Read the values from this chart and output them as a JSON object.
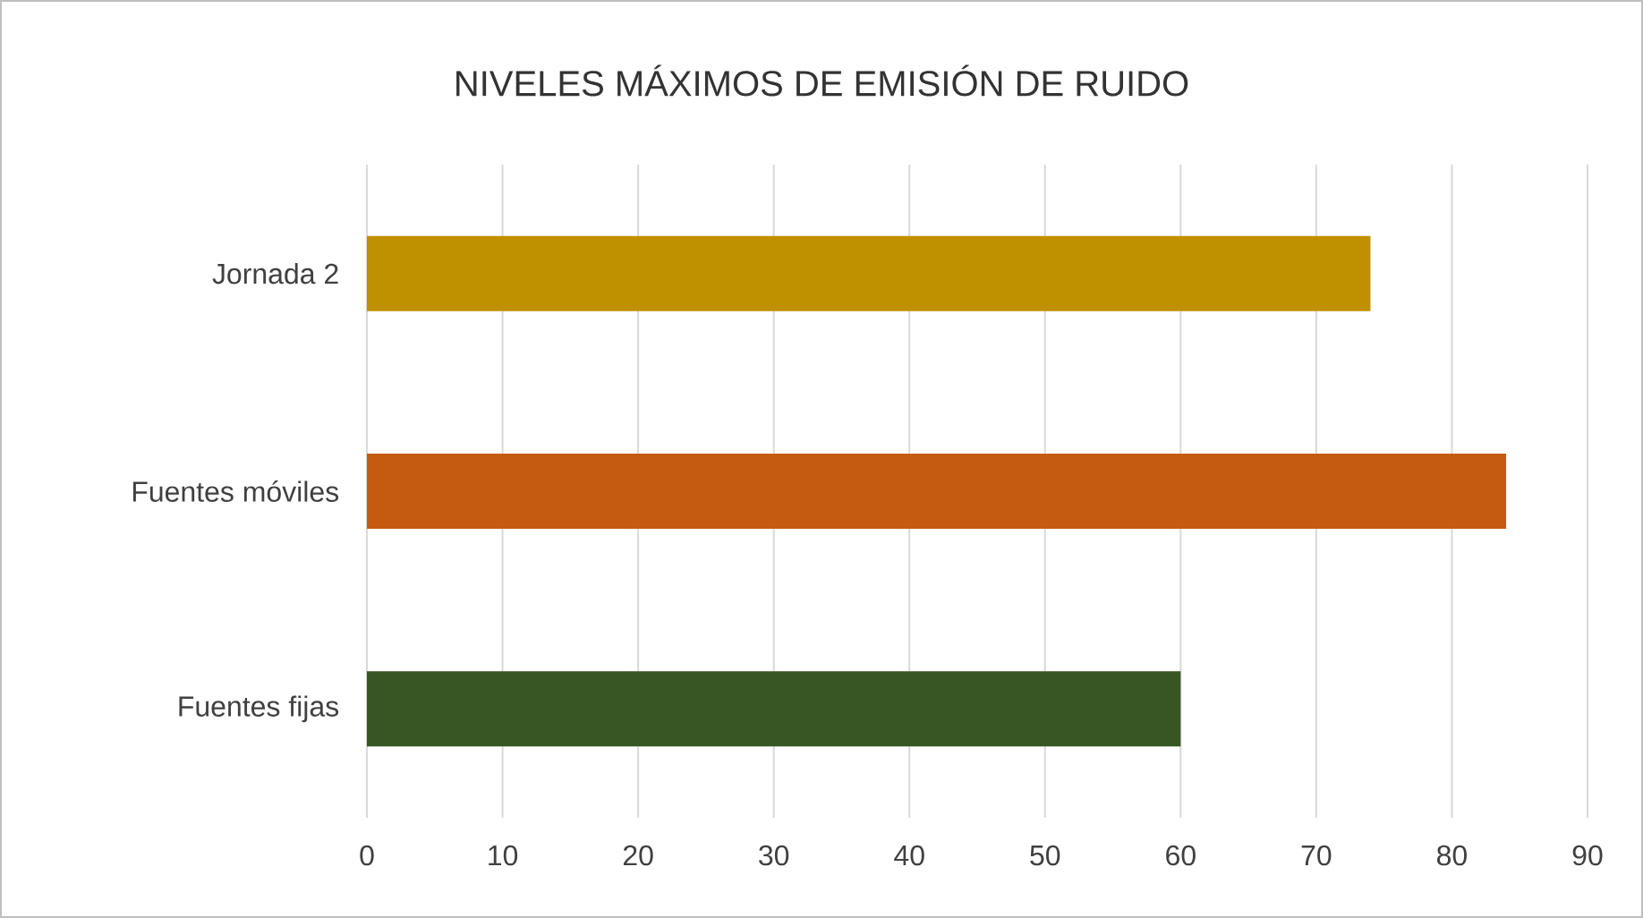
{
  "chart_data": {
    "type": "bar",
    "orientation": "horizontal",
    "title": "NIVELES MÁXIMOS DE EMISIÓN DE RUIDO",
    "categories": [
      "Jornada 2",
      "Fuentes móviles",
      "Fuentes fijas"
    ],
    "values": [
      74,
      84,
      60
    ],
    "colors": [
      "#bf9000",
      "#c55a11",
      "#375623"
    ],
    "xlim": [
      0,
      90
    ],
    "xticks": [
      0,
      10,
      20,
      30,
      40,
      50,
      60,
      70,
      80,
      90
    ],
    "grid": "x"
  }
}
